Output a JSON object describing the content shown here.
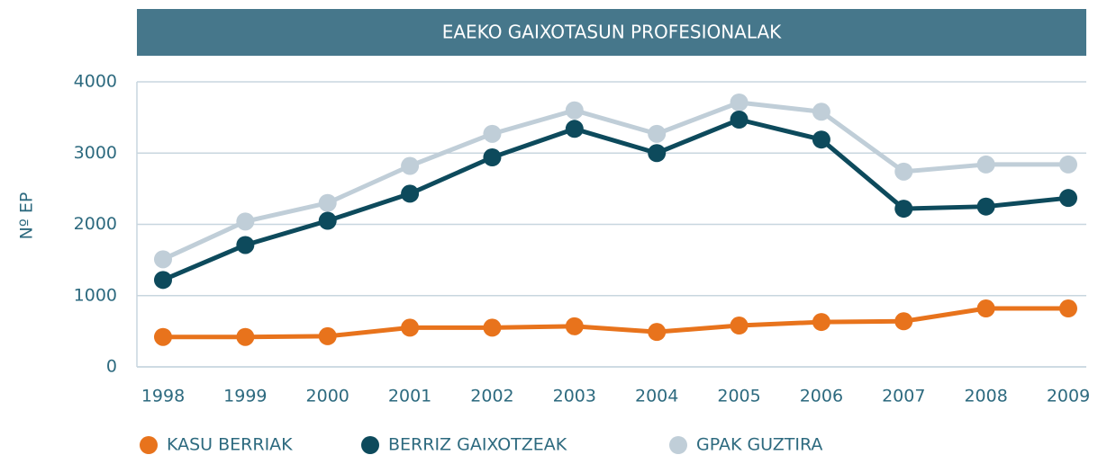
{
  "chart_data": {
    "type": "line",
    "title": "EAEKO GAIXOTASUN PROFESIONALAK",
    "y_label": "Nº EP",
    "categories": [
      "1998",
      "1999",
      "2000",
      "2001",
      "2002",
      "2003",
      "2004",
      "2005",
      "2006",
      "2007",
      "2008",
      "2009"
    ],
    "series": [
      {
        "name": "KASU BERRIAK",
        "color": "#e8731c",
        "values": [
          420,
          420,
          430,
          550,
          550,
          570,
          490,
          580,
          630,
          640,
          820,
          820
        ]
      },
      {
        "name": "BERRIZ GAIXOTZEAK",
        "color": "#0d4a5c",
        "values": [
          1220,
          1710,
          2050,
          2430,
          2940,
          3340,
          3000,
          3470,
          3190,
          2220,
          2250,
          2370
        ]
      },
      {
        "name": "GPAK GUZTIRA",
        "color": "#c0ced8",
        "values": [
          1510,
          2040,
          2300,
          2820,
          3270,
          3600,
          3270,
          3710,
          3580,
          2740,
          2840,
          2840
        ]
      }
    ],
    "ylim": [
      0,
      4000
    ],
    "yticks": [
      0,
      1000,
      2000,
      3000,
      4000
    ],
    "grid": true
  }
}
